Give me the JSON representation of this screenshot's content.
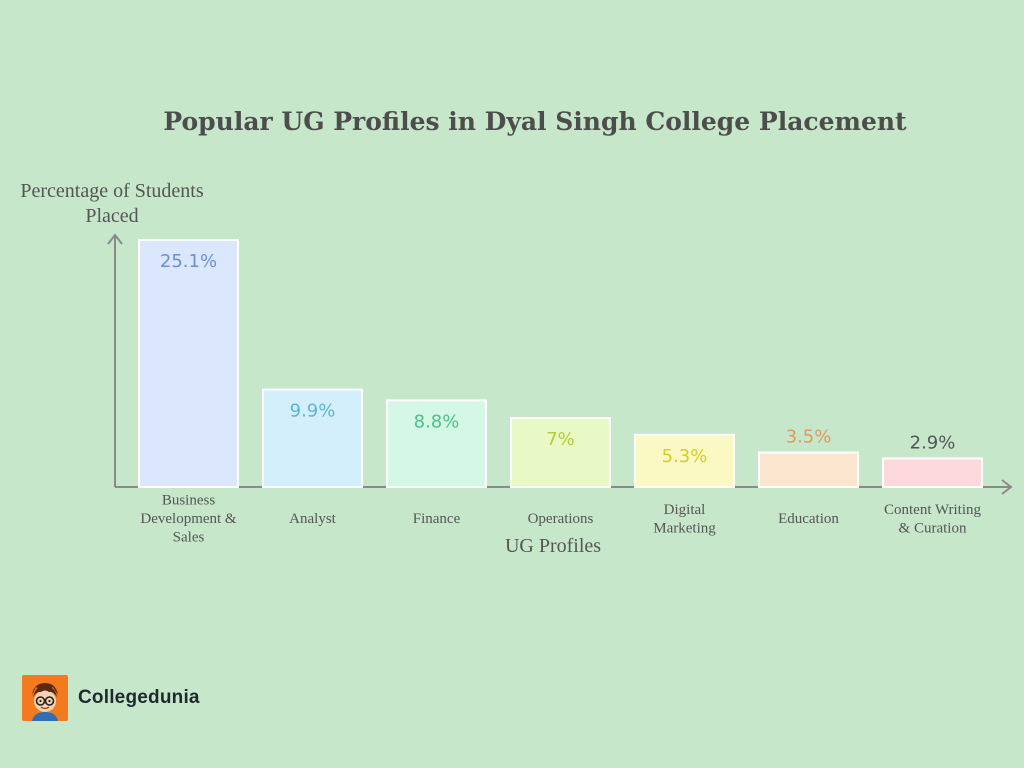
{
  "chart_data": {
    "type": "bar",
    "title": "Popular UG Profiles in Dyal Singh College Placement",
    "xlabel": "UG Profiles",
    "ylabel": "Percentage of Students Placed",
    "categories": [
      [
        "Business",
        "Development &",
        "Sales"
      ],
      [
        "Analyst"
      ],
      [
        "Finance"
      ],
      [
        "Operations"
      ],
      [
        "Digital",
        "Marketing"
      ],
      [
        "Education"
      ],
      [
        "Content Writing",
        "& Curation"
      ]
    ],
    "values": [
      25.1,
      9.9,
      8.8,
      7,
      5.3,
      3.5,
      2.9
    ],
    "data_labels": [
      "25.1%",
      "9.9%",
      "8.8%",
      "7%",
      "5.3%",
      "3.5%",
      "2.9%"
    ],
    "bar_colors": [
      "#dbe7fd",
      "#d4effc",
      "#d4f7e6",
      "#e8f9c5",
      "#faf9c4",
      "#fde6d0",
      "#fdd9dd"
    ],
    "label_colors": [
      "#6b8fd6",
      "#5bb5d6",
      "#4cc28c",
      "#b7cc3a",
      "#d8cb2c",
      "#e09a5f",
      "#555555"
    ],
    "ylim": [
      0,
      25.1
    ],
    "grid": false,
    "legend": "none"
  },
  "brand": {
    "name": "Collegedunia",
    "logo_icon": "avatar-icon"
  }
}
